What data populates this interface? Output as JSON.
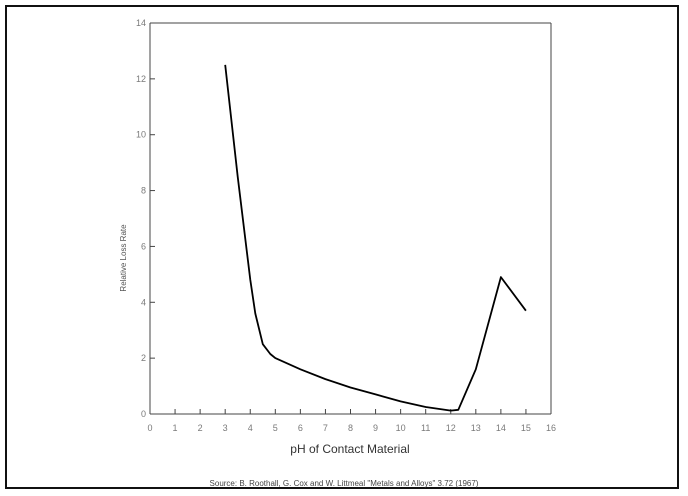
{
  "chart_data": {
    "type": "line",
    "title": "",
    "xlabel": "pH of Contact Material",
    "ylabel": "Relative Loss Rate",
    "xlim": [
      0,
      16
    ],
    "ylim": [
      0,
      14
    ],
    "x_ticks": [
      "0",
      "1",
      "2",
      "3",
      "4",
      "5",
      "6",
      "7",
      "8",
      "9",
      "10",
      "11",
      "12",
      "13",
      "14",
      "15",
      "16"
    ],
    "y_ticks": [
      "0",
      "2",
      "4",
      "6",
      "8",
      "10",
      "12",
      "14"
    ],
    "grid": false,
    "series": [
      {
        "x": [
          3.0,
          3.5,
          4.0,
          4.2,
          4.5,
          4.8,
          5.0,
          6.0,
          7.0,
          8.0,
          9.0,
          10.0,
          11.0,
          12.0,
          12.3,
          13.0,
          14.0,
          15.0
        ],
        "y": [
          12.5,
          8.5,
          4.8,
          3.6,
          2.5,
          2.15,
          2.0,
          1.6,
          1.25,
          0.95,
          0.7,
          0.45,
          0.25,
          0.12,
          0.15,
          1.6,
          4.9,
          3.7
        ],
        "color": "#000000"
      }
    ],
    "source": "Source: B. Roothall, G. Cox and W. Littmeal \"Metals and Alloys\" 3.72 (1967)"
  }
}
